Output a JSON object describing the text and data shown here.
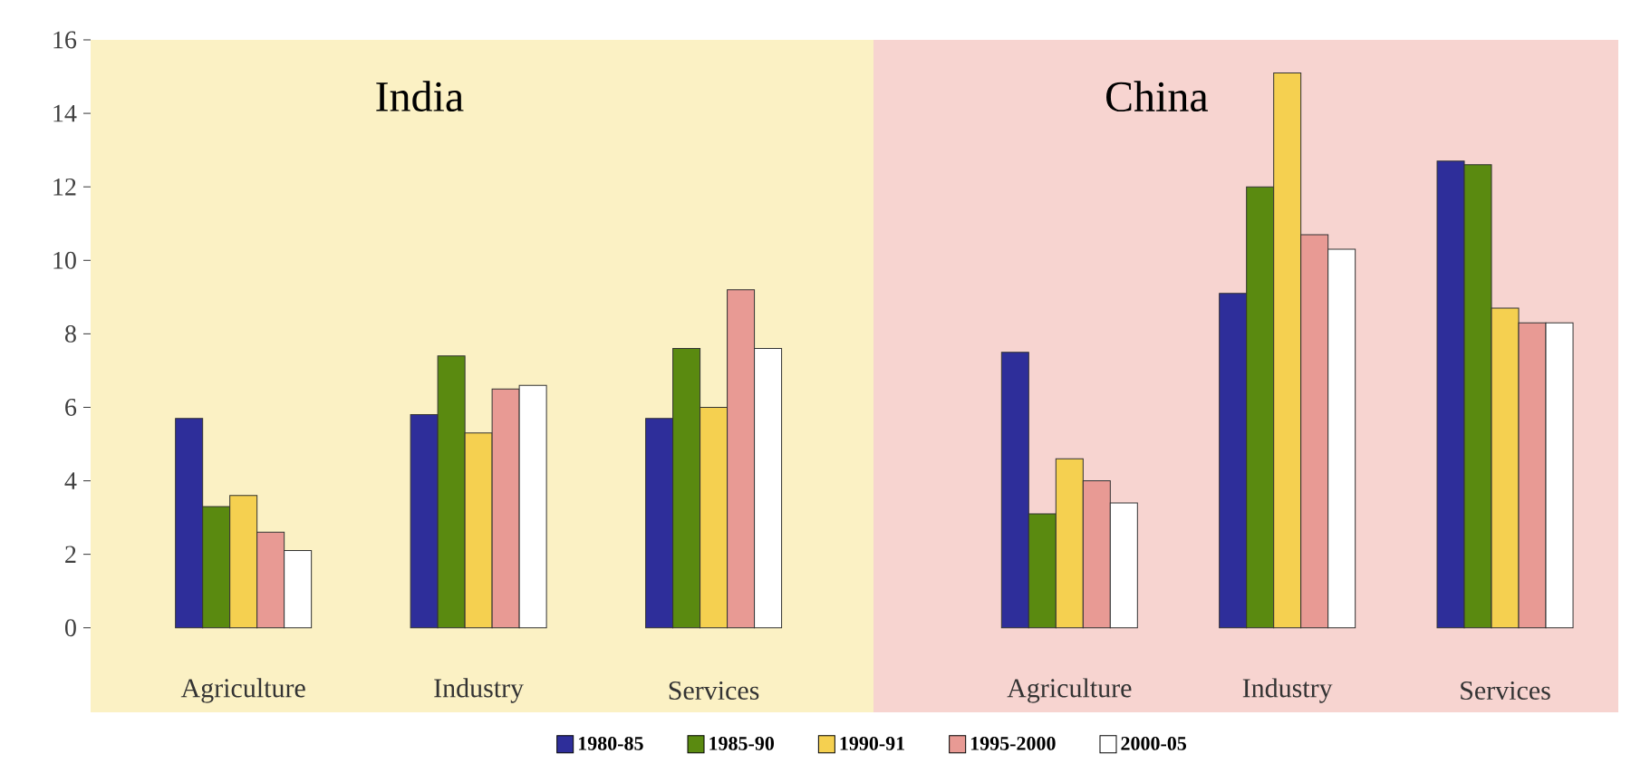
{
  "chart_data": [
    {
      "type": "bar",
      "title": "India",
      "categories": [
        "Agriculture",
        "Industry",
        "Services"
      ],
      "ylim": [
        -2.3,
        16
      ],
      "yticks": [
        0,
        2,
        4,
        6,
        8,
        10,
        12,
        14,
        16
      ],
      "legend": "bottom",
      "series": [
        {
          "name": "1980-85",
          "color": "#2e2e9a",
          "values": [
            5.7,
            5.8,
            5.7
          ]
        },
        {
          "name": "1985-90",
          "color": "#5a8a10",
          "values": [
            3.3,
            7.4,
            7.6
          ]
        },
        {
          "name": "1990-91",
          "color": "#f5d050",
          "values": [
            3.6,
            5.3,
            6.0
          ]
        },
        {
          "name": "1995-2000",
          "color": "#e89a94",
          "values": [
            2.6,
            6.5,
            9.2
          ]
        },
        {
          "name": "2000-05",
          "color": "#ffffff",
          "values": [
            2.1,
            6.6,
            7.6
          ]
        }
      ]
    },
    {
      "type": "bar",
      "title": "China",
      "categories": [
        "Agriculture",
        "Industry",
        "Services"
      ],
      "ylim": [
        -2.3,
        16
      ],
      "yticks": [
        0,
        2,
        4,
        6,
        8,
        10,
        12,
        14,
        16
      ],
      "tick_labels": "x",
      "series": [
        {
          "color": "#2e2e9a",
          "values": [
            7.5,
            9.1,
            12.7
          ]
        },
        {
          "color": "#5a8a10",
          "values": [
            3.1,
            12.0,
            12.6
          ]
        },
        {
          "color": "#f5d050",
          "values": [
            4.6,
            15.1,
            8.7
          ]
        },
        {
          "color": "#e89a94",
          "values": [
            4.0,
            10.7,
            8.3
          ]
        },
        {
          "color": "#ffffff",
          "values": [
            3.4,
            10.3,
            8.3
          ]
        }
      ]
    }
  ]
}
